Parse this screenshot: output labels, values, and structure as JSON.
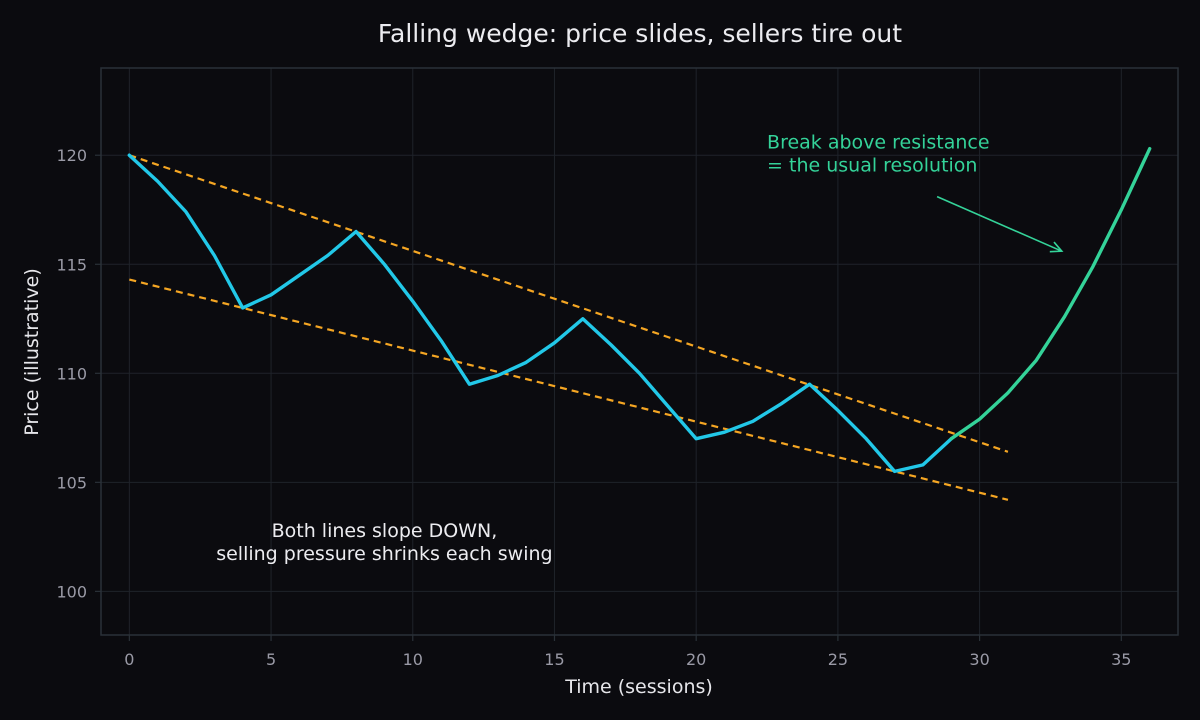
{
  "chart_data": {
    "type": "line",
    "title": "Falling wedge: price slides, sellers tire out",
    "xlabel": "Time (sessions)",
    "ylabel": "Price (illustrative)",
    "xlim": [
      -1,
      37
    ],
    "ylim": [
      98,
      124
    ],
    "x_ticks": [
      0,
      5,
      10,
      15,
      20,
      25,
      30,
      35
    ],
    "y_ticks": [
      100,
      105,
      110,
      115,
      120
    ],
    "grid": true,
    "colors": {
      "background": "#0b0b0f",
      "plot_border": "#2a3138",
      "grid": "#1f232a",
      "price": "#22c8e8",
      "breakout": "#34d399",
      "trendline": "#f5a623",
      "title": "#ececf0",
      "tick": "#9a9aa6"
    },
    "series": [
      {
        "role": "price",
        "points": [
          [
            0,
            120
          ],
          [
            1,
            118.8
          ],
          [
            2,
            117.4
          ],
          [
            3,
            115.4
          ],
          [
            4,
            113
          ],
          [
            5,
            113.6
          ],
          [
            6,
            114.5
          ],
          [
            7,
            115.4
          ],
          [
            8,
            116.5
          ],
          [
            9,
            115
          ],
          [
            10,
            113.3
          ],
          [
            11,
            111.5
          ],
          [
            12,
            109.5
          ],
          [
            13,
            109.9
          ],
          [
            14,
            110.5
          ],
          [
            15,
            111.4
          ],
          [
            16,
            112.5
          ],
          [
            17,
            111.3
          ],
          [
            18,
            110
          ],
          [
            19,
            108.5
          ],
          [
            20,
            107
          ],
          [
            21,
            107.3
          ],
          [
            22,
            107.8
          ],
          [
            23,
            108.6
          ],
          [
            24,
            109.5
          ],
          [
            25,
            108.3
          ],
          [
            26,
            107
          ],
          [
            27,
            105.5
          ],
          [
            28,
            105.8
          ],
          [
            29,
            107
          ]
        ]
      },
      {
        "role": "breakout",
        "points": [
          [
            29,
            107
          ],
          [
            30,
            107.9
          ],
          [
            31,
            109.1
          ],
          [
            32,
            110.6
          ],
          [
            33,
            112.6
          ],
          [
            34,
            114.9
          ],
          [
            35,
            117.5
          ],
          [
            36,
            120.3
          ]
        ]
      }
    ],
    "trendlines": [
      {
        "role": "resistance",
        "points": [
          [
            0,
            120
          ],
          [
            31,
            106.4
          ]
        ]
      },
      {
        "role": "support",
        "points": [
          [
            0,
            114.3
          ],
          [
            31,
            104.2
          ]
        ]
      }
    ],
    "annotations": [
      {
        "role": "breakout-note",
        "lines": [
          "Break above resistance",
          "= the usual resolution"
        ],
        "x": 22.5,
        "y": 120.3,
        "arrow_from": [
          28.5,
          118.1
        ],
        "arrow_to": [
          32.9,
          115.6
        ]
      },
      {
        "role": "wedge-note",
        "lines": [
          "Both lines slope DOWN,",
          "selling pressure shrinks each swing"
        ],
        "x": 9,
        "y": 102.5
      }
    ]
  }
}
